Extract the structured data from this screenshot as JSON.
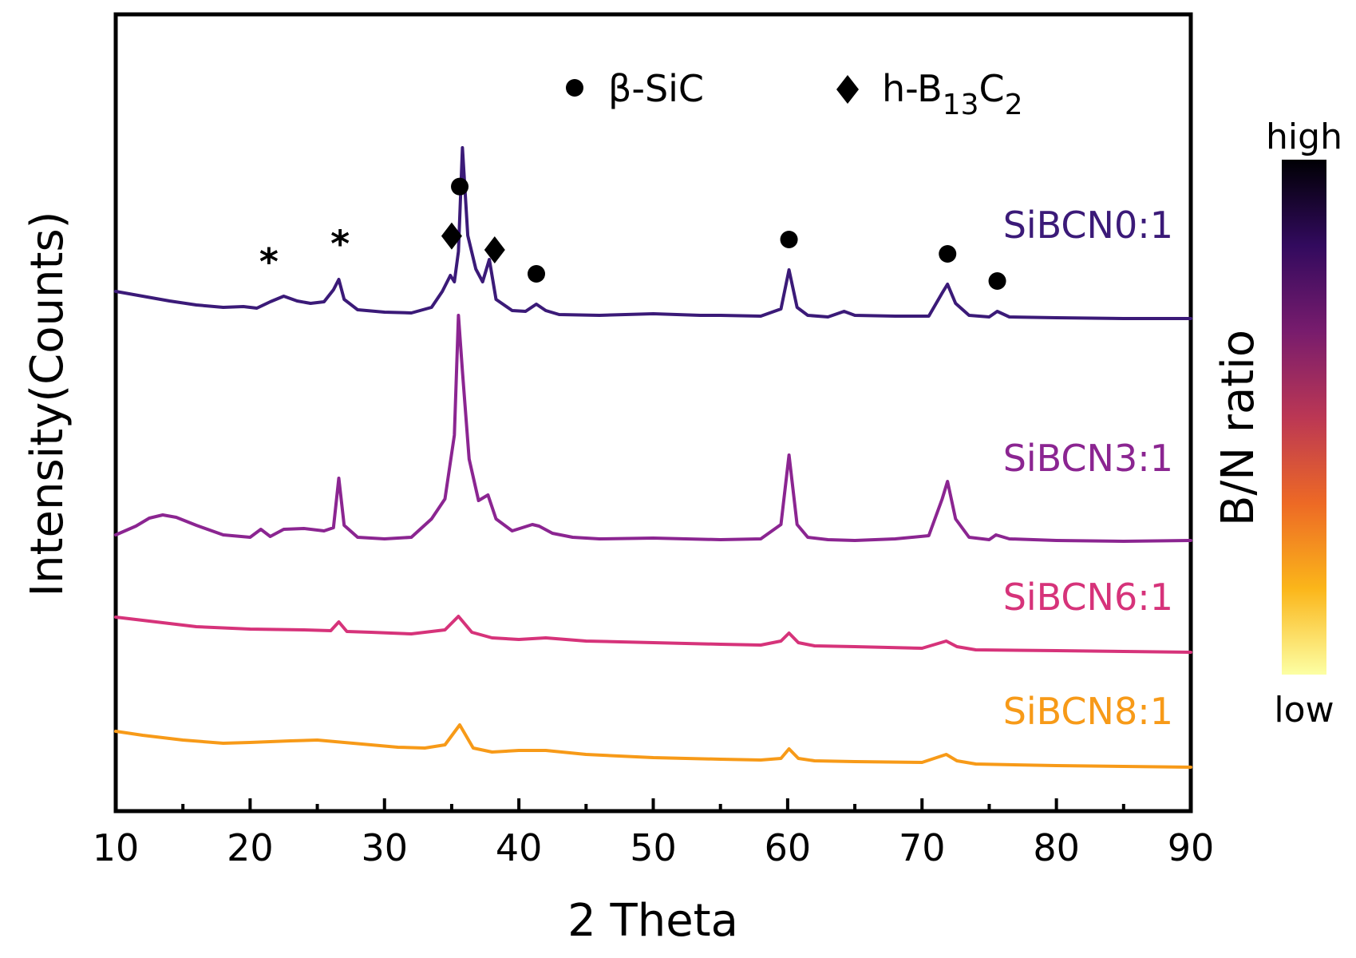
{
  "chart_data": {
    "type": "line",
    "title": "",
    "xlabel": "2 Theta",
    "ylabel": "Intensity(Counts)",
    "xlim": [
      10,
      90
    ],
    "x_ticks": [
      10,
      20,
      30,
      40,
      50,
      60,
      70,
      80,
      90
    ],
    "y_ticks": [],
    "y_unit": "arbitrary (stacked offsets, no y tick labels)",
    "legend": [
      {
        "symbol": "circle",
        "label": "β-SiC"
      },
      {
        "symbol": "diamond",
        "label": "h-B",
        "sub1": "13",
        "mid": "C",
        "sub2": "2"
      }
    ],
    "series": [
      {
        "name": "SiBCN0:1",
        "color": "#3b1a78",
        "x": [
          10,
          12,
          14,
          16,
          18,
          19.5,
          20.5,
          21.5,
          22.5,
          23.5,
          24.5,
          25.5,
          26.2,
          26.6,
          27.0,
          28,
          30,
          32,
          33.5,
          34.3,
          34.9,
          35.2,
          35.5,
          35.8,
          36.2,
          36.8,
          37.3,
          37.8,
          38.3,
          39.5,
          40.5,
          41.3,
          42,
          43,
          46,
          50,
          53.5,
          55,
          58,
          59.5,
          60.1,
          60.7,
          61.5,
          63,
          64.2,
          65,
          68,
          70.5,
          71.5,
          71.9,
          72.5,
          73.5,
          75,
          75.6,
          76.5,
          80,
          85,
          90
        ],
        "y": [
          40,
          34,
          28,
          23,
          20,
          21,
          19,
          27,
          34,
          28,
          25,
          27,
          42,
          55,
          30,
          17,
          14,
          13,
          20,
          40,
          60,
          52,
          90,
          220,
          110,
          68,
          52,
          80,
          30,
          16,
          15,
          24,
          16,
          11,
          10,
          12,
          10,
          10,
          9,
          18,
          67,
          20,
          10,
          8,
          15,
          10,
          9,
          9,
          38,
          49,
          25,
          10,
          8,
          15,
          8,
          7,
          6,
          6
        ]
      },
      {
        "name": "SiBCN3:1",
        "color": "#8b2591",
        "x": [
          10,
          11.5,
          12.5,
          13.5,
          14.5,
          16,
          18,
          20,
          20.8,
          21.5,
          22.5,
          24,
          25.5,
          26.2,
          26.6,
          27.0,
          28,
          30,
          32,
          33.5,
          34.5,
          35.2,
          35.5,
          35.8,
          36.3,
          37,
          37.7,
          38.3,
          39.5,
          41,
          41.5,
          42.5,
          44,
          46,
          50,
          55,
          58,
          59.5,
          60.1,
          60.7,
          61.5,
          63,
          65,
          68,
          70.5,
          71.5,
          71.9,
          72.5,
          73.5,
          75,
          75.5,
          76.5,
          80,
          85,
          90
        ],
        "y": [
          15,
          26,
          36,
          40,
          37,
          27,
          15,
          12,
          22,
          13,
          22,
          23,
          20,
          24,
          86,
          27,
          12,
          10,
          12,
          35,
          60,
          140,
          290,
          220,
          110,
          58,
          65,
          35,
          20,
          28,
          26,
          17,
          12,
          10,
          11,
          9,
          10,
          28,
          115,
          28,
          12,
          9,
          8,
          10,
          14,
          60,
          82,
          35,
          12,
          9,
          15,
          10,
          8,
          7,
          8
        ]
      },
      {
        "name": "SiBCN6:1",
        "color": "#d6337a",
        "x": [
          10,
          13,
          16,
          20,
          24,
          26.0,
          26.6,
          27.2,
          29,
          32,
          34.5,
          35.5,
          36.5,
          38,
          40,
          42,
          45,
          50,
          55,
          58,
          59.5,
          60.1,
          60.8,
          62,
          65,
          70,
          71.8,
          72.6,
          74,
          80,
          85,
          90
        ],
        "y": [
          32,
          26,
          20,
          17,
          16,
          15,
          26,
          14,
          13,
          11,
          16,
          33,
          13,
          6,
          4,
          6,
          2,
          0,
          -2,
          -3,
          2,
          12,
          0,
          -4,
          -5,
          -7,
          2,
          -5,
          -9,
          -10,
          -11,
          -12
        ]
      },
      {
        "name": "SiBCN8:1",
        "color": "#f79a18",
        "x": [
          10,
          12,
          15,
          18,
          20,
          23,
          25,
          27,
          29,
          31,
          33,
          34.5,
          35.6,
          36.6,
          38,
          40,
          42,
          45,
          50,
          55,
          58,
          59.5,
          60.1,
          60.8,
          62,
          65,
          70,
          71.8,
          72.6,
          74,
          80,
          85,
          90
        ],
        "y": [
          35,
          30,
          24,
          20,
          21,
          23,
          24,
          21,
          18,
          15,
          14,
          18,
          43,
          14,
          9,
          11,
          11,
          6,
          2,
          0,
          -1,
          1,
          13,
          1,
          -2,
          -3,
          -4,
          6,
          -2,
          -6,
          -8,
          -9,
          -10
        ]
      }
    ],
    "peak_markers": [
      {
        "symbol": "asterisk",
        "x": 21.4,
        "series": "SiBCN0:1"
      },
      {
        "symbol": "asterisk",
        "x": 26.7,
        "series": "SiBCN0:1"
      },
      {
        "symbol": "diamond",
        "x": 35.0,
        "series": "SiBCN0:1"
      },
      {
        "symbol": "circle",
        "x": 35.6,
        "series": "SiBCN0:1"
      },
      {
        "symbol": "diamond",
        "x": 38.2,
        "series": "SiBCN0:1"
      },
      {
        "symbol": "circle",
        "x": 41.3,
        "series": "SiBCN0:1"
      },
      {
        "symbol": "circle",
        "x": 60.1,
        "series": "SiBCN0:1"
      },
      {
        "symbol": "circle",
        "x": 71.9,
        "series": "SiBCN0:1"
      },
      {
        "symbol": "circle",
        "x": 75.6,
        "series": "SiBCN0:1"
      }
    ],
    "colorbar": {
      "label": "B/N ratio",
      "top_label": "high",
      "bottom_label": "low",
      "stops_top_to_bottom": [
        "#000004",
        "#320a5e",
        "#781c6d",
        "#bb3754",
        "#ed6925",
        "#fbb61a",
        "#fcffa4"
      ]
    }
  }
}
